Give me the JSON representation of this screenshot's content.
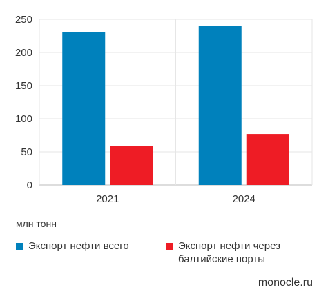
{
  "chart_data": {
    "type": "bar",
    "categories": [
      "2021",
      "2024"
    ],
    "series": [
      {
        "name": "Экспорт нефти всего",
        "color": "#0081BC",
        "values": [
          231,
          240
        ]
      },
      {
        "name": "Экспорт нефти через балтийские порты",
        "color": "#EE1C25",
        "values": [
          59,
          77
        ]
      }
    ],
    "yticks": [
      "0",
      "50",
      "100",
      "150",
      "200",
      "250"
    ],
    "ylim": [
      0,
      250
    ],
    "ylabel": "млн тонн",
    "grid": true,
    "legend_position": "bottom"
  },
  "source": "monocle.ru"
}
